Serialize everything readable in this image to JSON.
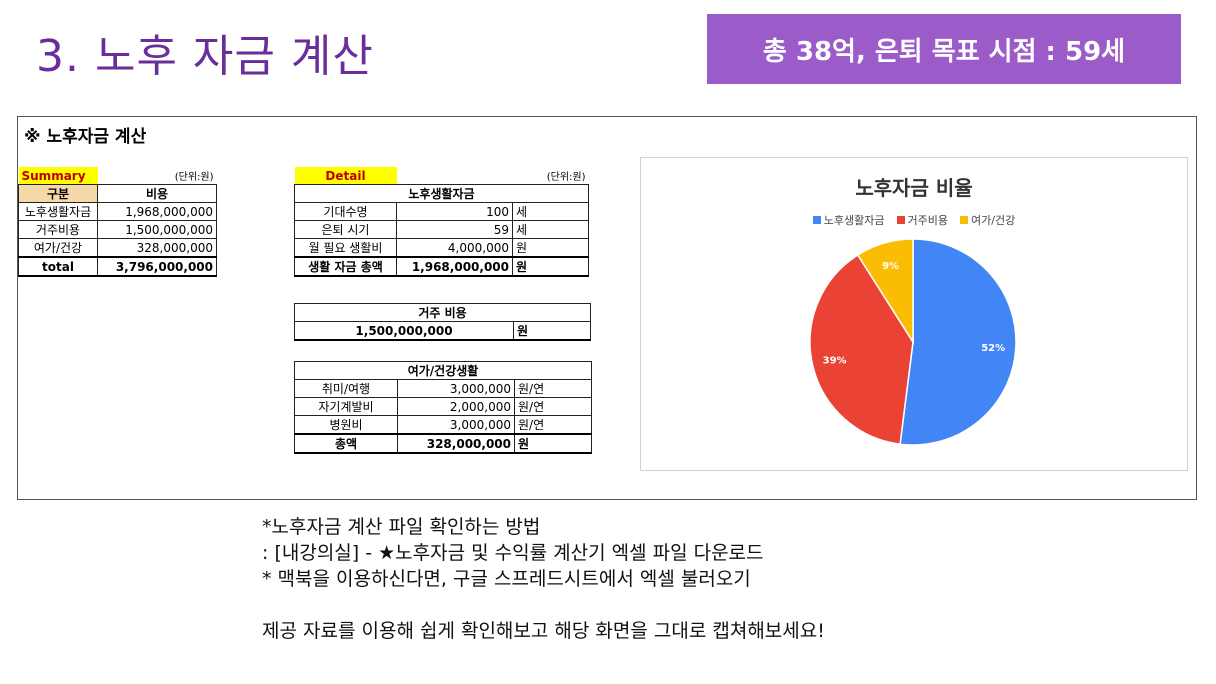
{
  "page_title": "3. 노후 자금 계산",
  "banner": "총 38억, 은퇴 목표 시점 : 59세",
  "sheet": {
    "title": "※ 노후자금 계산",
    "summary": {
      "tag": "Summary",
      "unit": "(단위:원)",
      "headers": [
        "구분",
        "비용"
      ],
      "rows": [
        {
          "label": "노후생활자금",
          "value": "1,968,000,000"
        },
        {
          "label": "거주비용",
          "value": "1,500,000,000"
        },
        {
          "label": "여가/건강",
          "value": "328,000,000"
        }
      ],
      "total_label": "total",
      "total_value": "3,796,000,000"
    },
    "detail": {
      "tag": "Detail",
      "unit": "(단위:원)",
      "living": {
        "header": "노후생활자금",
        "rows": [
          {
            "label": "기대수명",
            "value": "100",
            "unit": "세"
          },
          {
            "label": "은퇴 시기",
            "value": "59",
            "unit": "세"
          },
          {
            "label": "월 필요 생활비",
            "value": "4,000,000",
            "unit": "원"
          }
        ],
        "total_label": "생활 자금 총액",
        "total_value": "1,968,000,000",
        "total_unit": "원"
      },
      "housing": {
        "header": "거주 비용",
        "value": "1,500,000,000",
        "unit": "원"
      },
      "leisure": {
        "header": "여가/건강생활",
        "rows": [
          {
            "label": "취미/여행",
            "value": "3,000,000",
            "unit": "원/연"
          },
          {
            "label": "자기계발비",
            "value": "2,000,000",
            "unit": "원/연"
          },
          {
            "label": "병원비",
            "value": "3,000,000",
            "unit": "원/연"
          }
        ],
        "total_label": "총액",
        "total_value": "328,000,000",
        "total_unit": "원"
      }
    }
  },
  "chart_data": {
    "type": "pie",
    "title": "노후자금 비율",
    "categories": [
      "노후생활자금",
      "거주비용",
      "여가/건강"
    ],
    "values": [
      52,
      39,
      9
    ],
    "labels": [
      "52%",
      "39%",
      "9%"
    ],
    "colors": [
      "#4285f4",
      "#ea4335",
      "#fbbc04"
    ],
    "legend": "top"
  },
  "notes": [
    "*노후자금 계산 파일 확인하는 방법",
    ": [내강의실] - ★노후자금 및 수익률 계산기 엑셀 파일 다운로드",
    "* 맥북을 이용하신다면, 구글 스프레드시트에서 엑셀 불러오기",
    "",
    "제공 자료를 이용해 쉽게 확인해보고 해당 화면을 그대로 캡쳐해보세요!"
  ]
}
